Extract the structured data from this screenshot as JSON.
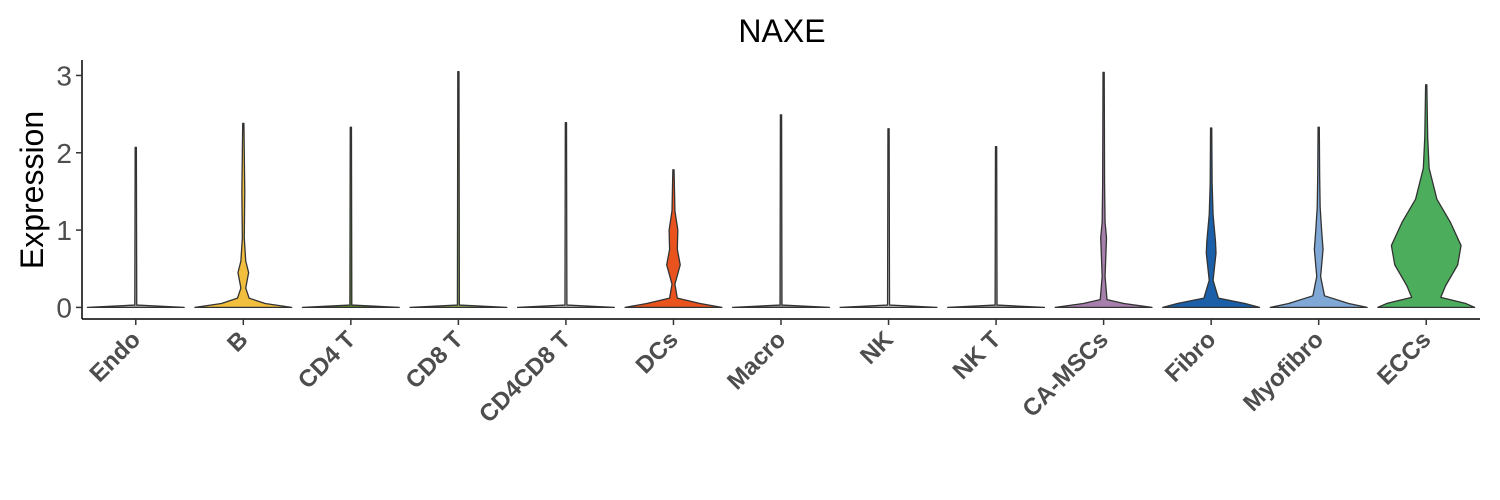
{
  "chart_data": {
    "type": "violin",
    "title": "NAXE",
    "xlabel": "",
    "ylabel": "Expression",
    "ylim": [
      -0.15,
      3.2
    ],
    "yticks": [
      "0",
      "1",
      "2",
      "3"
    ],
    "grid": false,
    "legend": "none",
    "categories": [
      "Endo",
      "B",
      "CD4 T",
      "CD8 T",
      "CD4CD8 T",
      "DCs",
      "Macro",
      "NK",
      "NK T",
      "CA-MSCs",
      "Fibro",
      "Myofibro",
      "ECCs"
    ],
    "colors": [
      "#b8b8b8",
      "#f2be3d",
      "#5e8c2f",
      "#8cb05a",
      "#c9c9c9",
      "#e8531e",
      "#9a9a9a",
      "#cfcfcf",
      "#a9a9a9",
      "#a77fad",
      "#1a5fa8",
      "#7fa8d6",
      "#4cae5c"
    ],
    "series": [
      {
        "max": 2.07,
        "density": [
          [
            0,
            1
          ],
          [
            0.03,
            0.02
          ],
          [
            2.07,
            0
          ]
        ]
      },
      {
        "max": 2.38,
        "density": [
          [
            0,
            1
          ],
          [
            0.05,
            0.45
          ],
          [
            0.12,
            0.12
          ],
          [
            0.25,
            0.05
          ],
          [
            0.45,
            0.11
          ],
          [
            0.6,
            0.05
          ],
          [
            0.9,
            0.02
          ],
          [
            1.5,
            0.03
          ],
          [
            2.38,
            0
          ]
        ]
      },
      {
        "max": 2.33,
        "density": [
          [
            0,
            1
          ],
          [
            0.03,
            0.02
          ],
          [
            2.33,
            0
          ]
        ]
      },
      {
        "max": 3.05,
        "density": [
          [
            0,
            1
          ],
          [
            0.03,
            0.02
          ],
          [
            3.05,
            0
          ]
        ]
      },
      {
        "max": 2.39,
        "density": [
          [
            0,
            1
          ],
          [
            0.03,
            0.02
          ],
          [
            2.39,
            0
          ]
        ]
      },
      {
        "max": 1.78,
        "density": [
          [
            0,
            1
          ],
          [
            0.05,
            0.55
          ],
          [
            0.12,
            0.08
          ],
          [
            0.3,
            0.03
          ],
          [
            0.55,
            0.14
          ],
          [
            0.75,
            0.08
          ],
          [
            1.0,
            0.09
          ],
          [
            1.25,
            0.03
          ],
          [
            1.78,
            0
          ]
        ]
      },
      {
        "max": 2.49,
        "density": [
          [
            0,
            1
          ],
          [
            0.03,
            0.02
          ],
          [
            2.49,
            0
          ]
        ]
      },
      {
        "max": 2.31,
        "density": [
          [
            0,
            1
          ],
          [
            0.03,
            0.02
          ],
          [
            2.31,
            0
          ]
        ]
      },
      {
        "max": 2.08,
        "density": [
          [
            0,
            1
          ],
          [
            0.03,
            0.02
          ],
          [
            2.08,
            0
          ]
        ]
      },
      {
        "max": 3.04,
        "density": [
          [
            0,
            1
          ],
          [
            0.05,
            0.42
          ],
          [
            0.1,
            0.07
          ],
          [
            0.4,
            0.03
          ],
          [
            0.9,
            0.06
          ],
          [
            1.1,
            0.03
          ],
          [
            1.6,
            0.02
          ],
          [
            3.04,
            0
          ]
        ]
      },
      {
        "max": 2.32,
        "density": [
          [
            0,
            1
          ],
          [
            0.05,
            0.7
          ],
          [
            0.12,
            0.15
          ],
          [
            0.35,
            0.04
          ],
          [
            0.7,
            0.1
          ],
          [
            0.85,
            0.09
          ],
          [
            1.2,
            0.04
          ],
          [
            1.6,
            0.02
          ],
          [
            2.32,
            0
          ]
        ]
      },
      {
        "max": 2.33,
        "density": [
          [
            0,
            1
          ],
          [
            0.05,
            0.62
          ],
          [
            0.15,
            0.12
          ],
          [
            0.4,
            0.04
          ],
          [
            0.75,
            0.09
          ],
          [
            1.0,
            0.06
          ],
          [
            1.3,
            0.03
          ],
          [
            1.7,
            0.02
          ],
          [
            2.33,
            0
          ]
        ]
      },
      {
        "max": 2.88,
        "density": [
          [
            0,
            1
          ],
          [
            0.05,
            0.82
          ],
          [
            0.13,
            0.3
          ],
          [
            0.28,
            0.4
          ],
          [
            0.55,
            0.65
          ],
          [
            0.8,
            0.72
          ],
          [
            1.1,
            0.5
          ],
          [
            1.4,
            0.22
          ],
          [
            1.8,
            0.06
          ],
          [
            2.2,
            0.03
          ],
          [
            2.88,
            0
          ]
        ]
      }
    ]
  }
}
